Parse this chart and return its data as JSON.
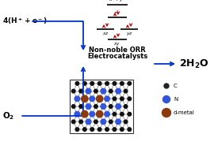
{
  "bg_color": "#ffffff",
  "arrow_color": "#0033cc",
  "orbital_arrow_color": "#cc0000",
  "center_text1": "Non-noble ORR",
  "center_text2": "Electrocatalysts",
  "legend_labels": [
    "C",
    "N",
    "d-metal"
  ],
  "legend_colors": [
    "#222222",
    "#3355dd",
    "#8B3A0F"
  ],
  "C_color": "#111111",
  "N_color": "#3355dd",
  "M_color": "#8B3A0F"
}
